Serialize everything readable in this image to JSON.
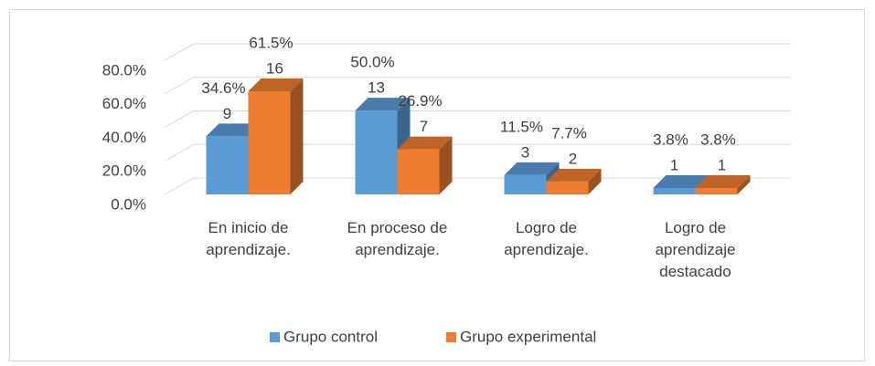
{
  "chart_data": {
    "type": "bar3d",
    "categories": [
      "En inicio de\naprendizaje.",
      "En proceso de\naprendizaje.",
      "Logro de\naprendizaje.",
      "Logro de\naprendizaje\ndestacado"
    ],
    "series": [
      {
        "name": "Grupo control",
        "color": "#5b9bd5",
        "values": [
          34.6,
          50.0,
          11.5,
          3.8
        ],
        "value_labels": [
          "34.6%",
          "50.0%",
          "11.5%",
          "3.8%"
        ],
        "counts": [
          9,
          13,
          3,
          1
        ]
      },
      {
        "name": "Grupo experimental",
        "color": "#ed7d31",
        "values": [
          61.5,
          26.9,
          7.7,
          3.8
        ],
        "value_labels": [
          "61.5%",
          "26.9%",
          "7.7%",
          "3.8%"
        ],
        "counts": [
          16,
          7,
          2,
          1
        ]
      }
    ],
    "ylim": [
      0,
      80
    ],
    "yticks": [
      {
        "value": 0,
        "label": "0.0%"
      },
      {
        "value": 20,
        "label": "20.0%"
      },
      {
        "value": 40,
        "label": "40.0%"
      },
      {
        "value": 60,
        "label": "60.0%"
      },
      {
        "value": 80,
        "label": "80.0%"
      }
    ],
    "grid": true
  }
}
